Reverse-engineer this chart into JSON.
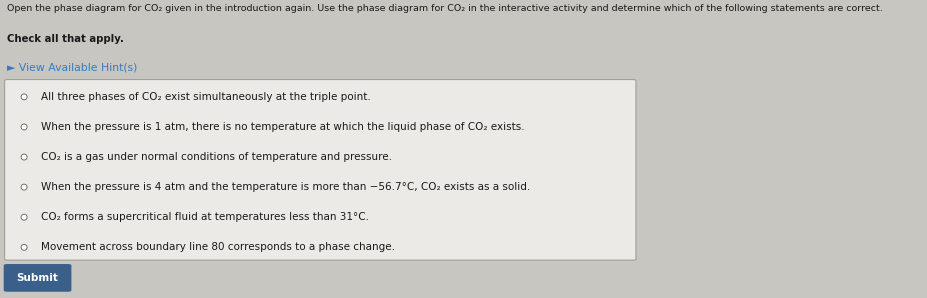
{
  "bg_color": "#c8c6c0",
  "title_line1": "Open the phase diagram for CO₂ given in the introduction again. Use the phase diagram for CO₂ in the interactive activity and determine which of the following statements are correct.",
  "title_line2": "Check all that apply.",
  "hint_text": "► View Available Hint(s)",
  "hint_color": "#3a7abf",
  "checkbox_options": [
    "All three phases of CO₂ exist simultaneously at the triple point.",
    "When the pressure is 1 atm, there is no temperature at which the liquid phase of CO₂ exists.",
    "CO₂ is a gas under normal conditions of temperature and pressure.",
    "When the pressure is 4 atm and the temperature is more than −56.7°C, CO₂ exists as a solid.",
    "CO₂ forms a supercritical fluid at temperatures less than 31°C.",
    "Movement across boundary line 80 corresponds to a phase change."
  ],
  "submit_bg": "#3a5f8a",
  "submit_text": "Submit",
  "submit_text_color": "#ffffff",
  "box_bg": "#eceae6",
  "box_edge_color": "#a0a09a",
  "title_fontsize": 6.8,
  "option_fontsize": 7.5,
  "hint_fontsize": 7.8,
  "submit_fontsize": 7.5
}
